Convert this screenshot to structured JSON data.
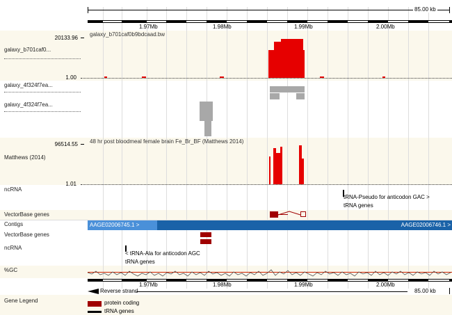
{
  "ruler_top": {
    "scale": "85.00 kb",
    "ticks": [
      "1.97Mb",
      "1.98Mb",
      "1.99Mb",
      "2.00Mb"
    ]
  },
  "ruler_bottom": {
    "strand": "Reverse strand",
    "scale": "85.00 kb",
    "ticks": [
      "1.97Mb",
      "1.98Mb",
      "1.99Mb",
      "2.00Mb"
    ]
  },
  "tracks": {
    "t1": {
      "max": "20133.96",
      "min": "1.00",
      "name": "galaxy_b701caf0...",
      "file": "galaxy_b701caf0b9bdcaad.bw"
    },
    "t2": {
      "name": "galaxy_4f324f7ea..."
    },
    "t3": {
      "name": "galaxy_4f324f7ea..."
    },
    "t4": {
      "max": "96514.55",
      "min": "1.01",
      "name": "Matthews (2014)",
      "desc": "48 hr post bloodmeal female brain Fe_Br_BF (Matthews 2014)"
    },
    "t5": {
      "name": "ncRNA",
      "feature": "tRNA-Pseudo for anticodon GAC >",
      "sub": "tRNA genes"
    },
    "t6": {
      "name": "VectorBase genes"
    },
    "t7": {
      "name": "Contigs",
      "left": "AAGE02006745.1 >",
      "right": "AAGE02006746.1 >"
    },
    "t8": {
      "name": "VectorBase genes"
    },
    "t9": {
      "name": "ncRNA",
      "feature": "< tRNA-Ala for anticodon AGC",
      "sub": "tRNA genes"
    },
    "t10": {
      "name": "%GC"
    }
  },
  "legend": {
    "title": "Gene Legend",
    "items": [
      "protein coding",
      "tRNA genes"
    ]
  },
  "colors": {
    "signal": "#e60000",
    "gene": "#a00000",
    "contig_dark": "#1a62a8",
    "contig_light": "#4a90d9",
    "gc_line": "#cc2200"
  }
}
